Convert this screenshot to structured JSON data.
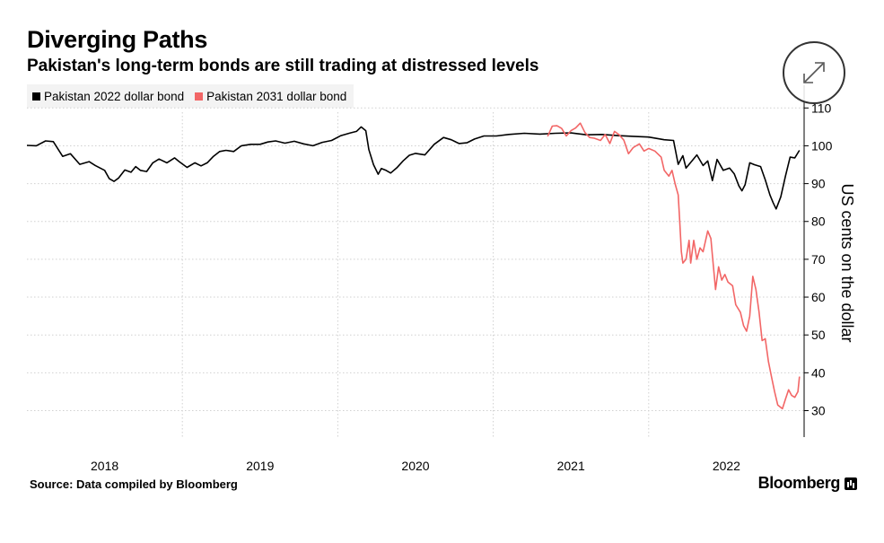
{
  "header": {
    "title": "Diverging Paths",
    "subtitle": "Pakistan's long-term bonds are still trading at distressed levels"
  },
  "legend": {
    "items": [
      {
        "label": "Pakistan 2022 dollar bond",
        "color": "#000000"
      },
      {
        "label": "Pakistan 2031 dollar bond",
        "color": "#f26666"
      }
    ]
  },
  "footer": {
    "source": "Source: Data compiled by Bloomberg",
    "brand": "Bloomberg"
  },
  "controls": {
    "expand_icon": "expand-arrows-icon"
  },
  "chart_data": {
    "type": "line",
    "ylabel": "US cents on the dollar",
    "ylim": [
      23,
      116
    ],
    "xlim": [
      2017.5,
      2022.5
    ],
    "yticks": [
      30,
      40,
      50,
      60,
      70,
      80,
      90,
      100,
      110
    ],
    "xticks": [
      {
        "label": "2018",
        "x": 2018.0
      },
      {
        "label": "2019",
        "x": 2019.0
      },
      {
        "label": "2020",
        "x": 2020.0
      },
      {
        "label": "2021",
        "x": 2021.0
      },
      {
        "label": "2022",
        "x": 2022.0
      }
    ],
    "grid": true,
    "series": [
      {
        "name": "Pakistan 2022 dollar bond",
        "color": "#000000",
        "points": [
          [
            2017.5,
            100.1
          ],
          [
            2017.56,
            100.0
          ],
          [
            2017.62,
            101.3
          ],
          [
            2017.67,
            101.1
          ],
          [
            2017.73,
            97.2
          ],
          [
            2017.78,
            97.9
          ],
          [
            2017.84,
            95.1
          ],
          [
            2017.9,
            95.8
          ],
          [
            2017.94,
            94.8
          ],
          [
            2018.0,
            93.5
          ],
          [
            2018.03,
            91.3
          ],
          [
            2018.06,
            90.6
          ],
          [
            2018.09,
            91.5
          ],
          [
            2018.13,
            93.6
          ],
          [
            2018.17,
            93.0
          ],
          [
            2018.2,
            94.5
          ],
          [
            2018.23,
            93.5
          ],
          [
            2018.27,
            93.2
          ],
          [
            2018.31,
            95.5
          ],
          [
            2018.35,
            96.5
          ],
          [
            2018.4,
            95.5
          ],
          [
            2018.45,
            96.8
          ],
          [
            2018.48,
            95.8
          ],
          [
            2018.53,
            94.3
          ],
          [
            2018.58,
            95.5
          ],
          [
            2018.62,
            94.7
          ],
          [
            2018.66,
            95.5
          ],
          [
            2018.7,
            97.2
          ],
          [
            2018.74,
            98.5
          ],
          [
            2018.78,
            98.8
          ],
          [
            2018.83,
            98.5
          ],
          [
            2018.88,
            100.0
          ],
          [
            2018.94,
            100.4
          ],
          [
            2019.0,
            100.4
          ],
          [
            2019.05,
            101.0
          ],
          [
            2019.1,
            101.3
          ],
          [
            2019.16,
            100.7
          ],
          [
            2019.22,
            101.2
          ],
          [
            2019.28,
            100.5
          ],
          [
            2019.34,
            100.0
          ],
          [
            2019.4,
            100.9
          ],
          [
            2019.46,
            101.4
          ],
          [
            2019.52,
            102.7
          ],
          [
            2019.58,
            103.4
          ],
          [
            2019.62,
            103.8
          ],
          [
            2019.65,
            105.0
          ],
          [
            2019.68,
            104.0
          ],
          [
            2019.7,
            99.0
          ],
          [
            2019.73,
            95.0
          ],
          [
            2019.76,
            92.5
          ],
          [
            2019.78,
            94.0
          ],
          [
            2019.81,
            93.5
          ],
          [
            2019.84,
            92.8
          ],
          [
            2019.88,
            94.2
          ],
          [
            2019.92,
            96.0
          ],
          [
            2019.96,
            97.5
          ],
          [
            2020.0,
            98.0
          ],
          [
            2020.06,
            97.6
          ],
          [
            2020.12,
            100.4
          ],
          [
            2020.18,
            102.2
          ],
          [
            2020.23,
            101.6
          ],
          [
            2020.28,
            100.6
          ],
          [
            2020.33,
            100.8
          ],
          [
            2020.38,
            101.8
          ],
          [
            2020.44,
            102.6
          ],
          [
            2020.52,
            102.6
          ],
          [
            2020.6,
            103.0
          ],
          [
            2020.7,
            103.3
          ],
          [
            2020.8,
            103.1
          ],
          [
            2020.9,
            103.3
          ],
          [
            2021.0,
            103.4
          ],
          [
            2021.1,
            102.9
          ],
          [
            2021.2,
            103.0
          ],
          [
            2021.3,
            102.7
          ],
          [
            2021.4,
            102.5
          ],
          [
            2021.5,
            102.3
          ],
          [
            2021.6,
            101.6
          ],
          [
            2021.66,
            101.4
          ],
          [
            2021.69,
            95.1
          ],
          [
            2021.72,
            97.4
          ],
          [
            2021.74,
            94.1
          ],
          [
            2021.77,
            95.6
          ],
          [
            2021.81,
            97.6
          ],
          [
            2021.85,
            94.8
          ],
          [
            2021.88,
            96.0
          ],
          [
            2021.91,
            90.8
          ],
          [
            2021.94,
            96.4
          ],
          [
            2021.98,
            93.5
          ],
          [
            2022.02,
            94.1
          ],
          [
            2022.05,
            92.6
          ],
          [
            2022.08,
            89.4
          ],
          [
            2022.1,
            88.1
          ],
          [
            2022.12,
            89.7
          ],
          [
            2022.15,
            95.5
          ],
          [
            2022.18,
            95.0
          ],
          [
            2022.22,
            94.5
          ],
          [
            2022.25,
            91.0
          ],
          [
            2022.28,
            87.0
          ],
          [
            2022.3,
            85.0
          ],
          [
            2022.32,
            83.3
          ],
          [
            2022.35,
            86.5
          ],
          [
            2022.38,
            92.0
          ],
          [
            2022.41,
            97.0
          ],
          [
            2022.44,
            96.8
          ],
          [
            2022.47,
            98.8
          ]
        ]
      },
      {
        "name": "Pakistan 2031 dollar bond",
        "color": "#f26666",
        "points": [
          [
            2020.85,
            102.5
          ],
          [
            2020.88,
            105.2
          ],
          [
            2020.91,
            105.3
          ],
          [
            2020.94,
            104.6
          ],
          [
            2020.97,
            102.6
          ],
          [
            2021.0,
            104.0
          ],
          [
            2021.03,
            104.7
          ],
          [
            2021.06,
            106.0
          ],
          [
            2021.09,
            103.5
          ],
          [
            2021.12,
            102.2
          ],
          [
            2021.15,
            102.0
          ],
          [
            2021.19,
            101.4
          ],
          [
            2021.22,
            103.0
          ],
          [
            2021.25,
            100.6
          ],
          [
            2021.28,
            103.8
          ],
          [
            2021.31,
            102.9
          ],
          [
            2021.34,
            101.5
          ],
          [
            2021.37,
            97.9
          ],
          [
            2021.4,
            99.5
          ],
          [
            2021.44,
            100.5
          ],
          [
            2021.47,
            98.6
          ],
          [
            2021.5,
            99.3
          ],
          [
            2021.54,
            98.6
          ],
          [
            2021.58,
            97.0
          ],
          [
            2021.6,
            93.5
          ],
          [
            2021.63,
            92.0
          ],
          [
            2021.65,
            93.5
          ],
          [
            2021.67,
            90.0
          ],
          [
            2021.69,
            87.0
          ],
          [
            2021.7,
            80.0
          ],
          [
            2021.71,
            72.0
          ],
          [
            2021.72,
            69.0
          ],
          [
            2021.74,
            70.0
          ],
          [
            2021.76,
            75.0
          ],
          [
            2021.77,
            69.0
          ],
          [
            2021.79,
            75.0
          ],
          [
            2021.81,
            70.0
          ],
          [
            2021.83,
            73.0
          ],
          [
            2021.85,
            72.0
          ],
          [
            2021.88,
            77.5
          ],
          [
            2021.9,
            75.5
          ],
          [
            2021.91,
            71.0
          ],
          [
            2021.93,
            62.0
          ],
          [
            2021.95,
            68.0
          ],
          [
            2021.97,
            64.5
          ],
          [
            2021.99,
            66.0
          ],
          [
            2022.01,
            64.0
          ],
          [
            2022.04,
            63.0
          ],
          [
            2022.06,
            58.0
          ],
          [
            2022.09,
            56.0
          ],
          [
            2022.11,
            52.5
          ],
          [
            2022.13,
            51.0
          ],
          [
            2022.15,
            55.0
          ],
          [
            2022.17,
            65.5
          ],
          [
            2022.19,
            62.0
          ],
          [
            2022.21,
            56.0
          ],
          [
            2022.23,
            48.5
          ],
          [
            2022.25,
            49.0
          ],
          [
            2022.27,
            43.0
          ],
          [
            2022.29,
            39.0
          ],
          [
            2022.31,
            35.0
          ],
          [
            2022.33,
            31.5
          ],
          [
            2022.36,
            30.5
          ],
          [
            2022.38,
            33.0
          ],
          [
            2022.4,
            35.5
          ],
          [
            2022.42,
            34.0
          ],
          [
            2022.44,
            33.5
          ],
          [
            2022.46,
            35.0
          ],
          [
            2022.47,
            39.0
          ]
        ]
      }
    ]
  }
}
